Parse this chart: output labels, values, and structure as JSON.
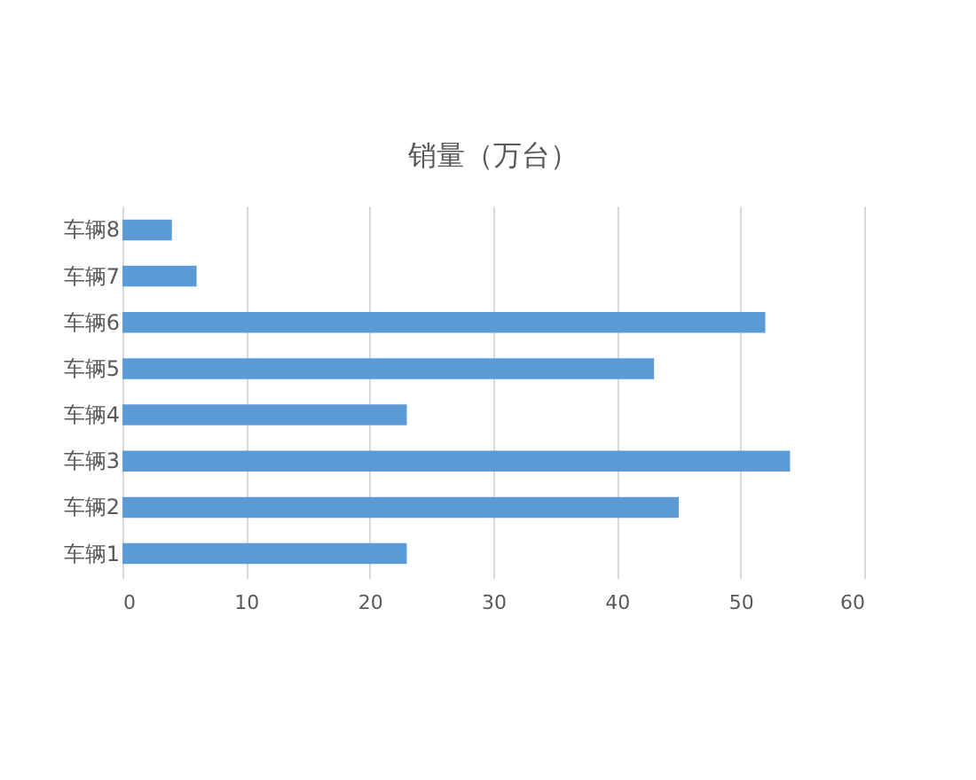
{
  "chart_data": {
    "type": "bar",
    "orientation": "horizontal",
    "title": "销量（万台）",
    "categories": [
      "车辆8",
      "车辆7",
      "车辆6",
      "车辆5",
      "车辆4",
      "车辆3",
      "车辆2",
      "车辆1"
    ],
    "values": [
      4,
      6,
      52,
      43,
      23,
      54,
      45,
      23
    ],
    "color": "#5b9bd5",
    "xlim": [
      0,
      60
    ],
    "xticks": [
      0,
      10,
      20,
      30,
      40,
      50,
      60
    ],
    "grid": "x"
  }
}
